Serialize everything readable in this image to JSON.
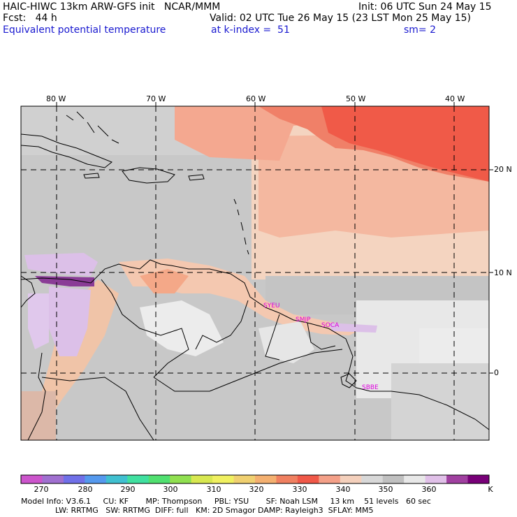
{
  "header": {
    "line1_left": "HAIC-HIWC 13km ARW-GFS init   NCAR/MMM",
    "line1_right": "Init: 06 UTC Sun 24 May 15",
    "line2_left": "Fcst:   44 h",
    "line2_right": "Valid: 02 UTC Tue 26 May 15 (23 LST Mon 25 May 15)",
    "line3_field": "Equivalent potential temperature",
    "line3_level": "at k-index =  51",
    "line3_smooth": "sm= 2"
  },
  "chart_data": {
    "type": "heatmap",
    "title": "Equivalent potential temperature",
    "units": "K",
    "x_ticks": [
      "80 W",
      "70 W",
      "60 W",
      "50 W",
      "40 W"
    ],
    "y_ticks": [
      "20 N",
      "10 N",
      "0"
    ],
    "x_range_deg": [
      -83,
      -37
    ],
    "y_range_deg": [
      -6.5,
      26.5
    ],
    "colorbar": {
      "levels": [
        270,
        280,
        290,
        300,
        310,
        320,
        330,
        340,
        350,
        360
      ],
      "unit_label": "K",
      "colors": [
        "#cc55cc",
        "#a070d0",
        "#7070e8",
        "#5599ee",
        "#40c0d0",
        "#40e0a0",
        "#50e070",
        "#90e050",
        "#d8e850",
        "#f0f060",
        "#f0d070",
        "#f4b070",
        "#f08060",
        "#f05848",
        "#f4a088",
        "#f4d0bc",
        "#d8d8d8",
        "#c0c0c0",
        "#e8e8e8",
        "#e0c0e8",
        "#a040a0",
        "#780078"
      ]
    },
    "station_labels": [
      "SYEU",
      "SMJP",
      "SOCA",
      "SBBE"
    ],
    "grid": true
  },
  "footer": {
    "line1": "Model Info: V3.6.1     CU: KF       MP: Thompson     PBL: YSU       SF: Noah LSM     13 km    51 levels   60 sec",
    "line2": "              LW: RRTMG   SW: RRTMG  DIFF: full   KM: 2D Smagor DAMP: Rayleigh3  SFLAY: MM5"
  }
}
